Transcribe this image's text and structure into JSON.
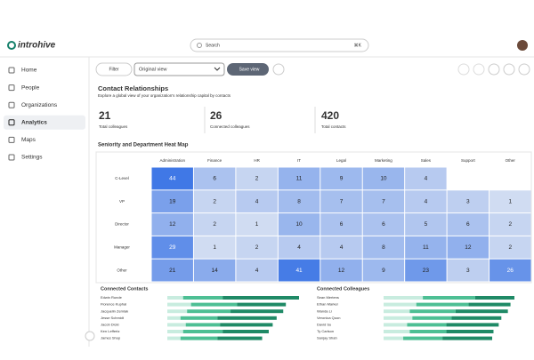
{
  "header": {
    "logo": "introhive",
    "search_placeholder": "Search",
    "search_shortcut": "⌘K"
  },
  "sidebar": {
    "items": [
      "Home",
      "People",
      "Organizations",
      "Analytics",
      "Maps",
      "Settings"
    ],
    "active": "Analytics"
  },
  "toolbar": {
    "filter": "Filter",
    "view": "Original view",
    "save": "Save view"
  },
  "page": {
    "title": "Contact Relationships",
    "subtitle": "Explore a global view of your organization's relationship capital by contacts"
  },
  "stats": [
    {
      "value": "21",
      "label": "Total colleagues"
    },
    {
      "value": "26",
      "label": "Connected colleagues"
    },
    {
      "value": "420",
      "label": "Total contacts"
    }
  ],
  "heatmap": {
    "title": "Seniority and Department Heat Map",
    "columns": [
      "Administration",
      "Finance",
      "HR",
      "IT",
      "Legal",
      "Marketing",
      "Sales",
      "Support",
      "Other"
    ],
    "rows": [
      {
        "label": "C-Level",
        "values": [
          44,
          6,
          2,
          11,
          9,
          10,
          4,
          null,
          null
        ]
      },
      {
        "label": "VP",
        "values": [
          19,
          2,
          4,
          8,
          7,
          7,
          4,
          3,
          1
        ]
      },
      {
        "label": "Director",
        "values": [
          12,
          2,
          1,
          10,
          6,
          6,
          5,
          6,
          2
        ]
      },
      {
        "label": "Manager",
        "values": [
          29,
          1,
          2,
          4,
          4,
          8,
          11,
          12,
          2
        ]
      },
      {
        "label": "Other",
        "values": [
          21,
          14,
          4,
          41,
          12,
          9,
          23,
          3,
          26
        ]
      }
    ]
  },
  "connected_contacts": {
    "title": "Connected Contacts",
    "rows": [
      {
        "name": "Edwin Runde",
        "segments": [
          12,
          30,
          58
        ]
      },
      {
        "name": "Florence Kuphal",
        "segments": [
          18,
          35,
          37
        ]
      },
      {
        "name": "Jacquelin Zemlak",
        "segments": [
          15,
          33,
          40
        ]
      },
      {
        "name": "Jesse Schmidt",
        "segments": [
          10,
          28,
          45
        ]
      },
      {
        "name": "Jacob Dicki",
        "segments": [
          14,
          26,
          40
        ]
      },
      {
        "name": "Ken Leffertz",
        "segments": [
          12,
          30,
          35
        ]
      },
      {
        "name": "James Shop",
        "segments": [
          10,
          28,
          34
        ]
      }
    ]
  },
  "connected_colleagues": {
    "title": "Connected Colleagues",
    "rows": [
      {
        "name": "Sean Mertens",
        "segments": [
          30,
          40,
          30
        ]
      },
      {
        "name": "Ethan Marker",
        "segments": [
          25,
          40,
          32
        ]
      },
      {
        "name": "Wanda Li",
        "segments": [
          20,
          35,
          40
        ]
      },
      {
        "name": "Veronica Quon",
        "segments": [
          22,
          30,
          38
        ]
      },
      {
        "name": "David Su",
        "segments": [
          18,
          30,
          40
        ]
      },
      {
        "name": "Ty Carlson",
        "segments": [
          20,
          28,
          36
        ]
      },
      {
        "name": "Sanjay Shah",
        "segments": [
          15,
          30,
          38
        ]
      }
    ]
  }
}
